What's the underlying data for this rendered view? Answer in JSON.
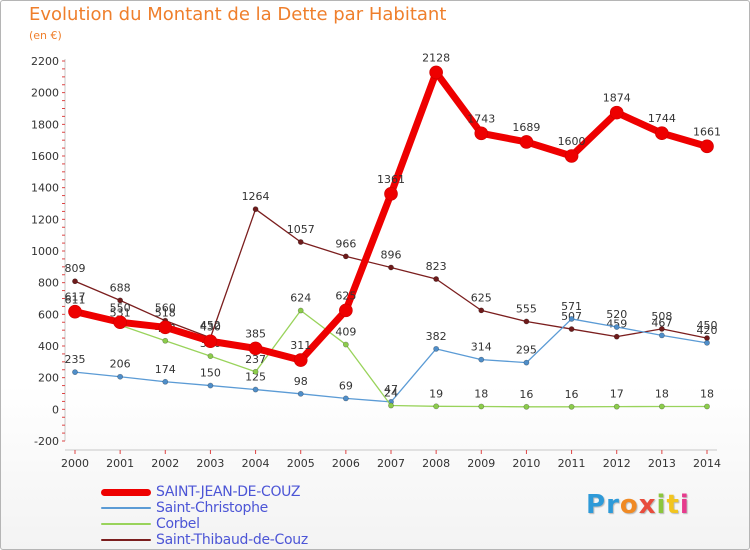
{
  "title": "Evolution du Montant de la Dette par Habitant",
  "unit": "(en €)",
  "logo": {
    "letters": [
      "P",
      "r",
      "o",
      "x",
      "i",
      "t",
      "i"
    ],
    "colors": [
      "#2e9ad8",
      "#2e9ad8",
      "#f08a24",
      "#e84c3d",
      "#8cc63e",
      "#f2c51f",
      "#e63b8d"
    ]
  },
  "chart_data": {
    "type": "line",
    "title": "Evolution du Montant de la Dette par Habitant",
    "ylabel": "(en €)",
    "xlabel": "",
    "x": [
      "2000",
      "2001",
      "2002",
      "2003",
      "2004",
      "2005",
      "2006",
      "2007",
      "2008",
      "2009",
      "2010",
      "2011",
      "2012",
      "2013",
      "2014"
    ],
    "yticks": [
      "-200",
      "0",
      "200",
      "400",
      "600",
      "800",
      "1000",
      "1200",
      "1400",
      "1600",
      "1800",
      "2000",
      "2200"
    ],
    "ylim": [
      -200,
      2200
    ],
    "grid": false,
    "legend": "bottom-left",
    "series": [
      {
        "name": "Saint-Thibaud-de-Couz",
        "color": "#7b1e1e",
        "markerFill": "#6e1b1b",
        "width": 1.3,
        "marker": 2.6,
        "emph": false,
        "values": [
          809,
          688,
          560,
          452,
          1264,
          1057,
          966,
          896,
          823,
          625,
          555,
          507,
          459,
          508,
          450
        ],
        "labels": [
          "809",
          "688",
          "560",
          "452",
          "1264",
          "1057",
          "966",
          "896",
          "823",
          "625",
          "555",
          "507",
          "459",
          "508",
          "450"
        ]
      },
      {
        "name": "Saint-Christophe",
        "color": "#5b9bd5",
        "markerFill": "#4f8ec9",
        "width": 1.3,
        "marker": 2.6,
        "emph": false,
        "values": [
          235,
          206,
          174,
          150,
          125,
          98,
          69,
          47,
          382,
          314,
          295,
          571,
          520,
          467,
          420
        ],
        "labels": [
          "235",
          "206",
          "174",
          "150",
          "125",
          "98",
          "69",
          "47",
          "382",
          "314",
          "295",
          "571",
          "520",
          "467",
          "420"
        ]
      },
      {
        "name": "Corbel",
        "color": "#99d35b",
        "markerFill": "#8ccc4c",
        "width": 1.3,
        "marker": 2.6,
        "emph": false,
        "values": [
          611,
          531,
          433,
          336,
          237,
          624,
          409,
          24,
          19,
          18,
          16,
          16,
          17,
          18,
          18
        ],
        "labels": [
          "611",
          "531",
          "433",
          "336",
          "237",
          "624",
          "409",
          "24",
          "19",
          "18",
          "16",
          "16",
          "17",
          "18",
          "18"
        ]
      },
      {
        "name": "SAINT-JEAN-DE-COUZ",
        "color": "#ee0000",
        "markerFill": "#ee0000",
        "width": 7,
        "marker": 6.5,
        "emph": true,
        "values": [
          617,
          550,
          518,
          430,
          385,
          311,
          625,
          1361,
          2128,
          1743,
          1689,
          1600,
          1874,
          1744,
          1661
        ],
        "labels": [
          "617",
          "550",
          "518",
          "430",
          "385",
          "311",
          "625",
          "1361",
          "2128",
          "1743",
          "1689",
          "1600",
          "1874",
          "1744",
          "1661"
        ]
      }
    ]
  },
  "legend": [
    {
      "label": "SAINT-JEAN-DE-COUZ",
      "color": "#ee0000",
      "thick": 7
    },
    {
      "label": "Saint-Christophe",
      "color": "#5b9bd5",
      "thick": 2
    },
    {
      "label": "Corbel",
      "color": "#99d35b",
      "thick": 2
    },
    {
      "label": "Saint-Thibaud-de-Couz",
      "color": "#7b1e1e",
      "thick": 2
    }
  ]
}
